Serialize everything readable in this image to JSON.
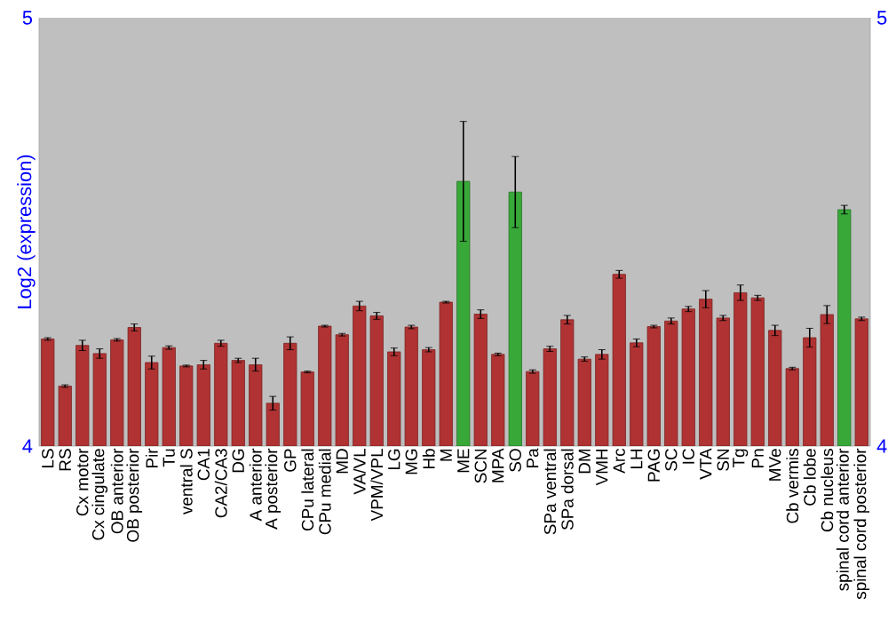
{
  "chart_data": {
    "type": "bar",
    "ylabel": "Log2 (expression)",
    "categories": [
      "LS",
      "RS",
      "Cx motor",
      "Cx cingulate",
      "OB anterior",
      "OB posterior",
      "Pir",
      "Tu",
      "ventral S",
      "CA1",
      "CA2/CA3",
      "DG",
      "A anterior",
      "A posterior",
      "GP",
      "CPu lateral",
      "CPu medial",
      "MD",
      "VA/VL",
      "VPM/VPL",
      "LG",
      "MG",
      "Hb",
      "M",
      "ME",
      "SCN",
      "MPA",
      "SO",
      "Pa",
      "SPa ventral",
      "SPa dorsal",
      "DM",
      "VMH",
      "Arc",
      "LH",
      "PAG",
      "SC",
      "IC",
      "VTA",
      "SN",
      "Tg",
      "Pn",
      "MVe",
      "Cb vermis",
      "Cb lobe",
      "Cb nucleus",
      "spinal cord anterior",
      "spinal cord posterior"
    ],
    "values": [
      4.25,
      4.14,
      4.235,
      4.216,
      4.248,
      4.277,
      4.195,
      4.23,
      4.187,
      4.19,
      4.24,
      4.2,
      4.19,
      4.1,
      4.24,
      4.173,
      4.28,
      4.26,
      4.327,
      4.304,
      4.22,
      4.278,
      4.225,
      4.336,
      4.618,
      4.308,
      4.214,
      4.593,
      4.174,
      4.227,
      4.295,
      4.203,
      4.214,
      4.401,
      4.241,
      4.279,
      4.292,
      4.32,
      4.343,
      4.299,
      4.358,
      4.346,
      4.27,
      4.181,
      4.253,
      4.307,
      4.552,
      4.297
    ],
    "errors": [
      0.003,
      0.003,
      0.012,
      0.011,
      0.003,
      0.008,
      0.015,
      0.004,
      0.002,
      0.01,
      0.007,
      0.005,
      0.015,
      0.016,
      0.015,
      0.002,
      0.002,
      0.003,
      0.011,
      0.008,
      0.009,
      0.004,
      0.005,
      0.002,
      0.14,
      0.01,
      0.003,
      0.083,
      0.004,
      0.006,
      0.01,
      0.005,
      0.011,
      0.009,
      0.009,
      0.003,
      0.007,
      0.006,
      0.02,
      0.006,
      0.018,
      0.006,
      0.012,
      0.003,
      0.022,
      0.021,
      0.01,
      0.004
    ],
    "colors": [
      "#b03232",
      "#b03232",
      "#b03232",
      "#b03232",
      "#b03232",
      "#b03232",
      "#b03232",
      "#b03232",
      "#b03232",
      "#b03232",
      "#b03232",
      "#b03232",
      "#b03232",
      "#b03232",
      "#b03232",
      "#b03232",
      "#b03232",
      "#b03232",
      "#b03232",
      "#b03232",
      "#b03232",
      "#b03232",
      "#b03232",
      "#b03232",
      "#38a838",
      "#b03232",
      "#b03232",
      "#38a838",
      "#b03232",
      "#b03232",
      "#b03232",
      "#b03232",
      "#b03232",
      "#b03232",
      "#b03232",
      "#b03232",
      "#b03232",
      "#b03232",
      "#b03232",
      "#b03232",
      "#b03232",
      "#b03232",
      "#b03232",
      "#b03232",
      "#b03232",
      "#b03232",
      "#38a838",
      "#b03232"
    ],
    "ylim": [
      4,
      5
    ],
    "yticks": [
      4,
      5
    ],
    "y2lim": [
      4,
      5
    ],
    "y2ticks": [
      4,
      5
    ],
    "grid": false
  }
}
